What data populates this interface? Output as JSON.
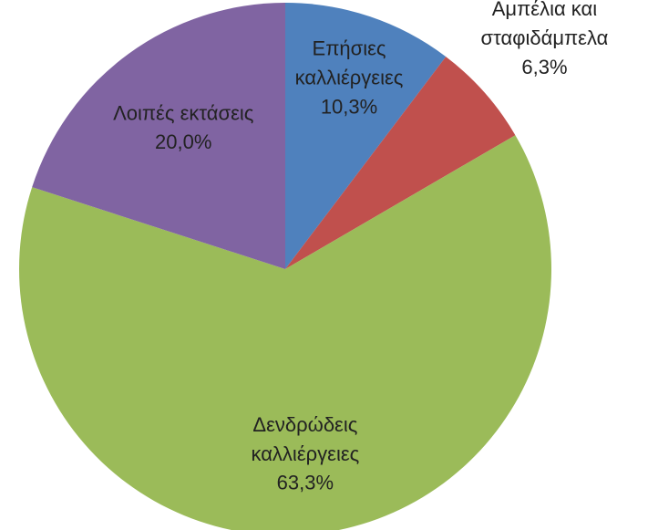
{
  "chart_data": {
    "type": "pie",
    "categories": [
      "Επήσιες\nκαλλιέργειες",
      "Αμπέλια και\nσταφιδάμπελα",
      "Δενδρώδεις\nκαλλιέργειες",
      "Λοιπές εκτάσεις"
    ],
    "values": [
      10.3,
      6.3,
      63.3,
      20.0
    ],
    "value_labels": [
      "10,3%",
      "6,3%",
      "63,3%",
      "20,0%"
    ],
    "colors": [
      "#4f81bd",
      "#c0504d",
      "#9bbb59",
      "#8064a2"
    ]
  }
}
